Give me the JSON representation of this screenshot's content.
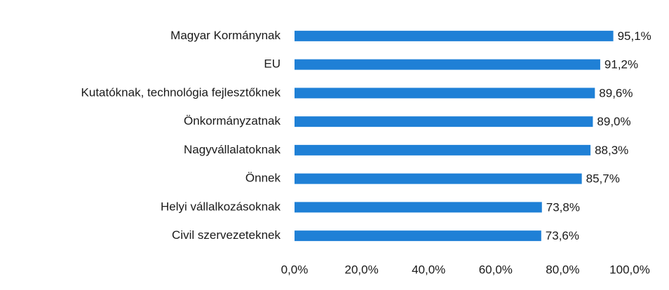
{
  "chart_data": {
    "type": "hbar",
    "categories": [
      "Magyar Kormánynak",
      "EU",
      "Kutatóknak, technológia fejlesztőknek",
      "Önkormányzatnak",
      "Nagyvállalatoknak",
      "Önnek",
      "Helyi vállalkozásoknak",
      "Civil szervezeteknek"
    ],
    "values": [
      95.1,
      91.2,
      89.6,
      89.0,
      88.3,
      85.7,
      73.8,
      73.6
    ],
    "value_labels": [
      "95,1%",
      "91,2%",
      "89,6%",
      "89,0%",
      "88,3%",
      "85,7%",
      "73,8%",
      "73,6%"
    ],
    "color": "#1f80d6",
    "xlim": [
      0,
      100
    ],
    "xticks": [
      {
        "value": 0,
        "label": "0,0%"
      },
      {
        "value": 20,
        "label": "20,0%"
      },
      {
        "value": 40,
        "label": "40,0%"
      },
      {
        "value": 60,
        "label": "60,0%"
      },
      {
        "value": 80,
        "label": "80,0%"
      },
      {
        "value": 100,
        "label": "100,0%"
      }
    ],
    "grid": false
  }
}
